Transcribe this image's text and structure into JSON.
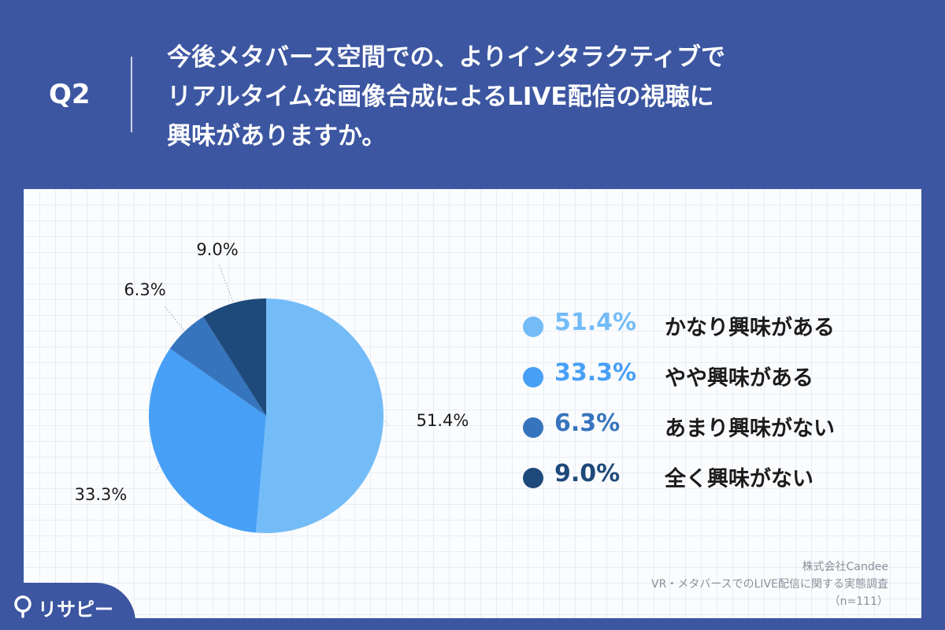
{
  "header": {
    "q_label": "Q2",
    "question_lines": [
      "今後メタバース空間での、よりインタラクティブで",
      "リアルタイムな画像合成によるLIVE配信の視聴に",
      "興味がありますか。"
    ]
  },
  "chart_data": {
    "type": "pie",
    "title": "",
    "slices": [
      {
        "label": "かなり興味がある",
        "value": 51.4,
        "value_label": "51.4%",
        "color": "#74bcf8"
      },
      {
        "label": "やや興味がある",
        "value": 33.3,
        "value_label": "33.3%",
        "color": "#48a0f6"
      },
      {
        "label": "あまり興味がない",
        "value": 6.3,
        "value_label": "6.3%",
        "color": "#3674bd"
      },
      {
        "label": "全く興味がない",
        "value": 9.0,
        "value_label": "9.0%",
        "color": "#1e4a7b"
      }
    ],
    "legend_position": "right"
  },
  "legend": {
    "items": [
      {
        "pct": "51.4%",
        "text": "かなり興味がある"
      },
      {
        "pct": "33.3%",
        "text": "やや興味がある"
      },
      {
        "pct": "6.3%",
        "text": "あまり興味がない"
      },
      {
        "pct": "9.0%",
        "text": "全く興味がない"
      }
    ]
  },
  "source": {
    "company": "株式会社Candee",
    "survey": "VR・メタバースでのLIVE配信に関する実態調査",
    "sample": "（n=111）"
  },
  "brand": {
    "name": "リサピー",
    "icon": "pin-icon"
  },
  "colors": {
    "background": "#3c56a1",
    "panel": "#fbfcfe"
  }
}
